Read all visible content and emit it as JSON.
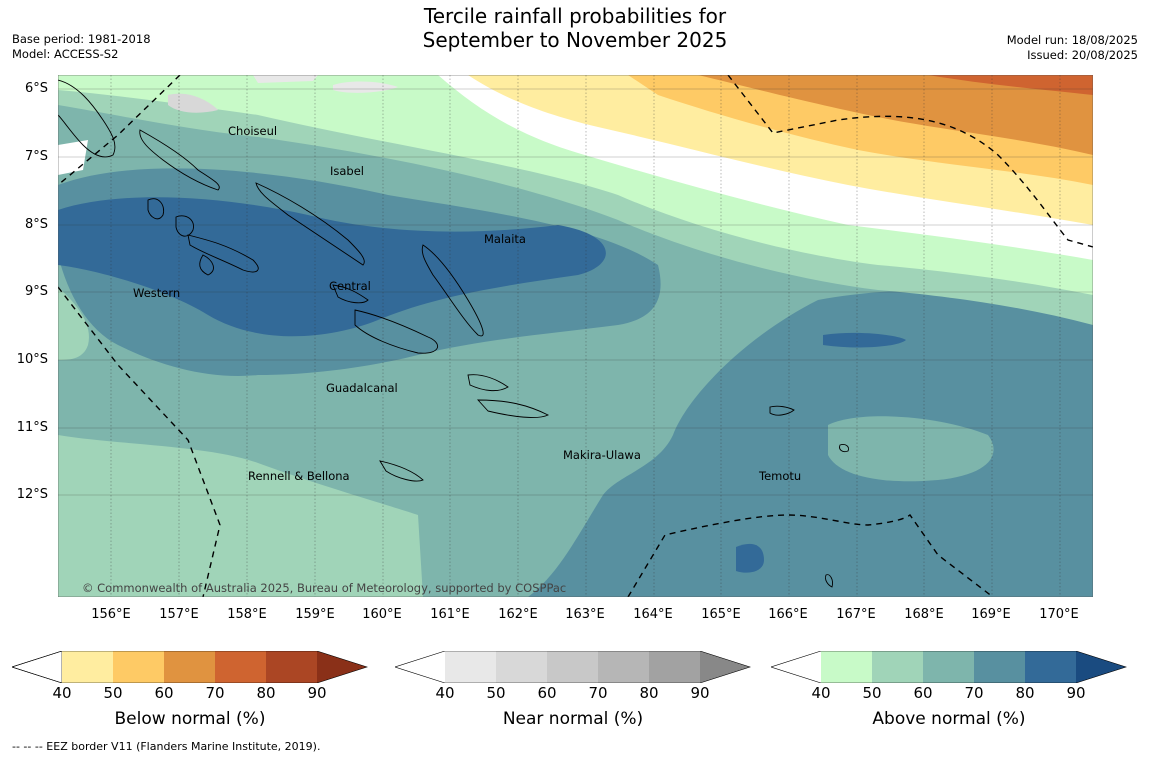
{
  "title_line1": "Tercile rainfall probabilities for",
  "title_line2": "September to November 2025",
  "base_period": "Base period: 1981-2018",
  "model": "Model: ACCESS-S2",
  "model_run": "Model run: 18/08/2025",
  "issued": "Issued: 20/08/2025",
  "lat_labels": [
    "6°S",
    "7°S",
    "8°S",
    "9°S",
    "10°S",
    "11°S",
    "12°S"
  ],
  "lon_labels": [
    "156°E",
    "157°E",
    "158°E",
    "159°E",
    "160°E",
    "161°E",
    "162°E",
    "163°E",
    "164°E",
    "165°E",
    "166°E",
    "167°E",
    "168°E",
    "169°E",
    "170°E"
  ],
  "provinces": [
    "Choiseul",
    "Isabel",
    "Malaita",
    "Central",
    "Western",
    "Guadalcanal",
    "Makira-Ulawa",
    "Rennell & Bellona",
    "Temotu"
  ],
  "copyright": "© Commonwealth of Australia 2025, Bureau of Meteorology, supported by COSPPac",
  "colorbars": [
    {
      "label": "Below normal (%)",
      "ticks": [
        "40",
        "50",
        "60",
        "70",
        "80",
        "90"
      ],
      "colors": [
        "#ffffff",
        "#ffeda0",
        "#feca65",
        "#e09340",
        "#cf6430",
        "#ab4624",
        "#8a3018"
      ]
    },
    {
      "label": "Near normal (%)",
      "ticks": [
        "40",
        "50",
        "60",
        "70",
        "80",
        "90"
      ],
      "colors": [
        "#ffffff",
        "#e8e8e8",
        "#d8d8d8",
        "#c8c8c8",
        "#b6b6b6",
        "#a2a2a2",
        "#888888"
      ]
    },
    {
      "label": "Above normal (%)",
      "ticks": [
        "40",
        "50",
        "60",
        "70",
        "80",
        "90"
      ],
      "colors": [
        "#ffffff",
        "#c8fac8",
        "#a0d4b8",
        "#7eb5ac",
        "#5890a0",
        "#336a98",
        "#1a4b80"
      ]
    }
  ],
  "footnote": "--  --  -- EEZ border V11 (Flanders Marine Institute, 2019)."
}
